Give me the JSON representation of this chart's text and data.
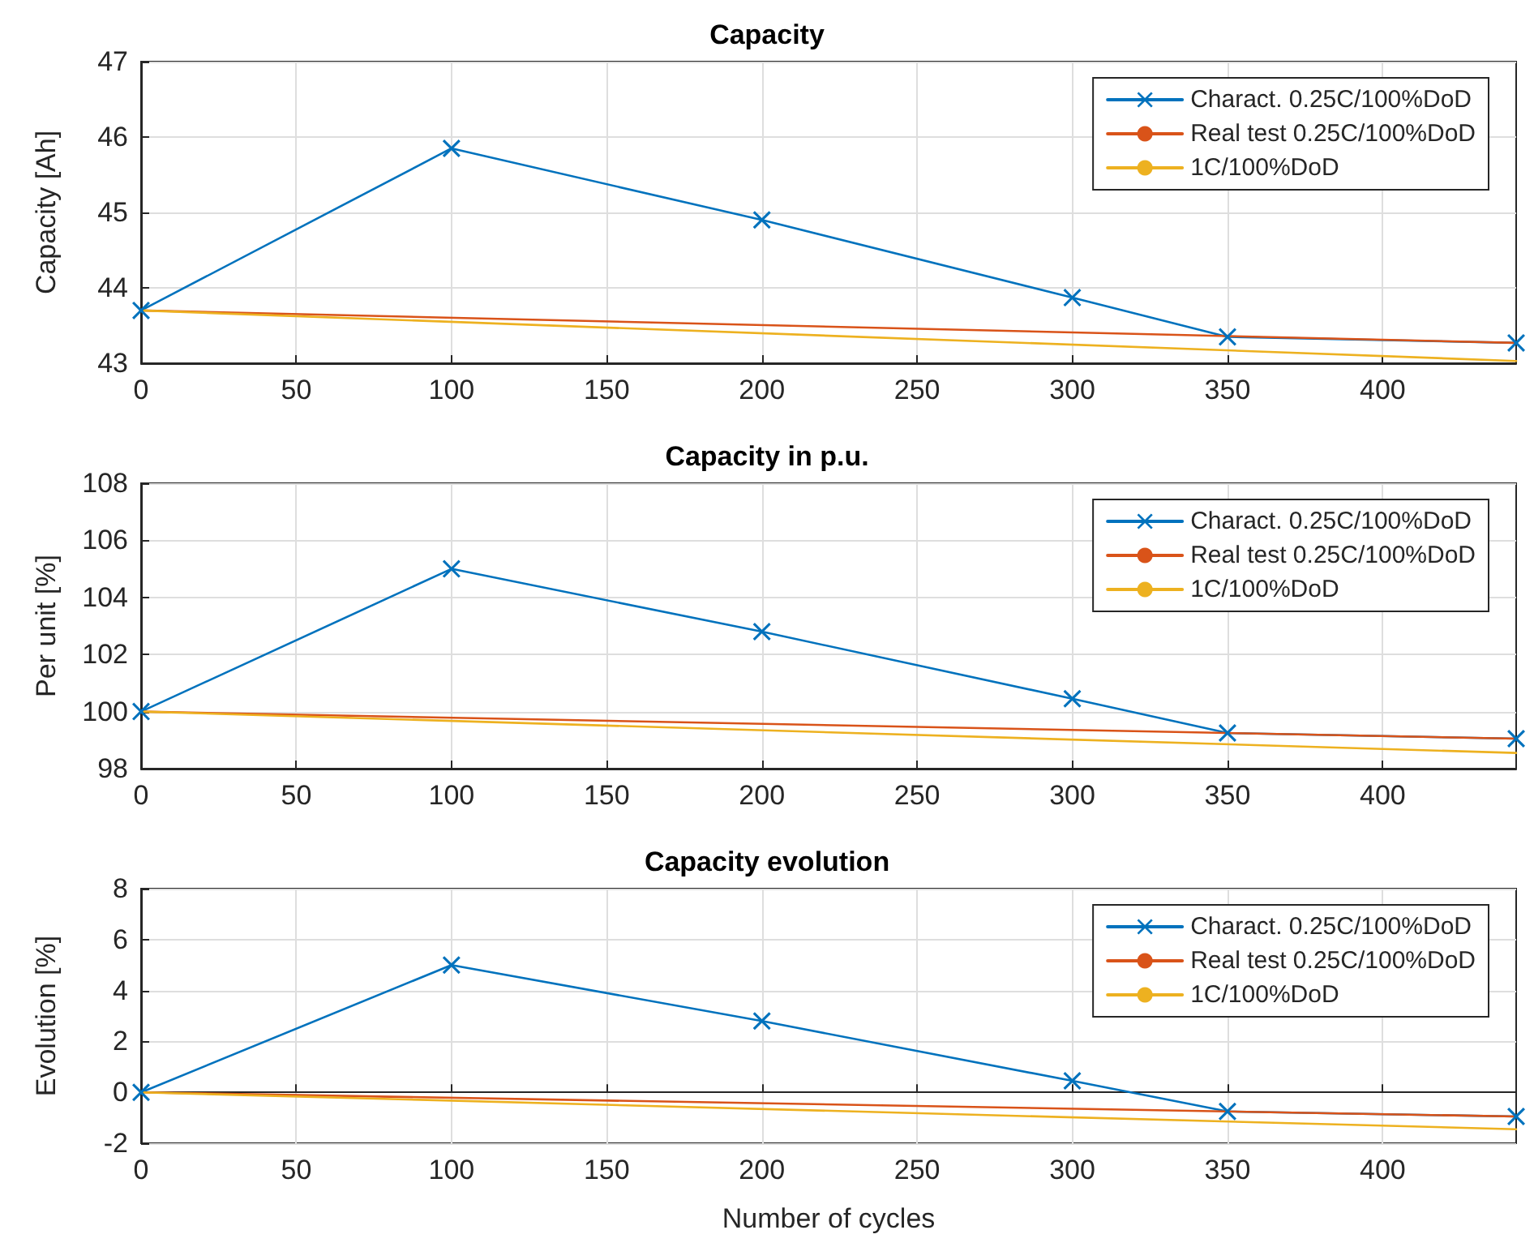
{
  "chart_data": [
    {
      "type": "line",
      "title": "Capacity",
      "ylabel": "Capacity [Ah]",
      "xlim": [
        0,
        443
      ],
      "xticks": [
        0,
        50,
        100,
        150,
        200,
        250,
        300,
        350,
        400
      ],
      "ylim": [
        43,
        47
      ],
      "yticks": [
        43,
        44,
        45,
        46,
        47
      ],
      "grid": true,
      "legend": "top right",
      "line_style": "solid",
      "series": [
        {
          "name": "Charact. 0.25C/100%DoD",
          "color": "#0072bd",
          "marker": "cross",
          "x": [
            0,
            100,
            200,
            300,
            350,
            443
          ],
          "values": [
            43.7,
            45.85,
            44.9,
            43.87,
            43.35,
            43.27
          ]
        },
        {
          "name": "Real test 0.25C/100%DoD",
          "color": "#d95319",
          "marker": "none",
          "x": [
            0,
            443
          ],
          "values": [
            43.7,
            43.27
          ]
        },
        {
          "name": "1C/100%DoD",
          "color": "#edb120",
          "marker": "none",
          "x": [
            0,
            443
          ],
          "values": [
            43.7,
            43.03
          ]
        }
      ]
    },
    {
      "type": "line",
      "title": "Capacity in p.u.",
      "ylabel": "Per unit [%]",
      "xlim": [
        0,
        443
      ],
      "xticks": [
        0,
        50,
        100,
        150,
        200,
        250,
        300,
        350,
        400
      ],
      "ylim": [
        98,
        108
      ],
      "yticks": [
        98,
        100,
        102,
        104,
        106,
        108
      ],
      "grid": true,
      "legend": "top right",
      "line_style": "solid",
      "series": [
        {
          "name": "Charact. 0.25C/100%DoD",
          "color": "#0072bd",
          "marker": "cross",
          "x": [
            0,
            100,
            200,
            300,
            350,
            443
          ],
          "values": [
            100,
            105,
            102.8,
            100.45,
            99.25,
            99.05
          ]
        },
        {
          "name": "Real test 0.25C/100%DoD",
          "color": "#d95319",
          "marker": "none",
          "x": [
            0,
            443
          ],
          "values": [
            100,
            99.05
          ]
        },
        {
          "name": "1C/100%DoD",
          "color": "#edb120",
          "marker": "none",
          "x": [
            0,
            443
          ],
          "values": [
            100,
            98.55
          ]
        }
      ]
    },
    {
      "type": "line",
      "title": "Capacity evolution",
      "xlabel": "Number of cycles",
      "ylabel": "Evolution [%]",
      "xlim": [
        0,
        443
      ],
      "xticks": [
        0,
        50,
        100,
        150,
        200,
        250,
        300,
        350,
        400
      ],
      "ylim": [
        -2,
        8
      ],
      "yticks": [
        -2,
        0,
        2,
        4,
        6,
        8
      ],
      "grid": true,
      "legend": "top right",
      "line_style": "solid",
      "series": [
        {
          "name": "Charact. 0.25C/100%DoD",
          "color": "#0072bd",
          "marker": "cross",
          "x": [
            0,
            100,
            200,
            300,
            350,
            443
          ],
          "values": [
            0,
            5,
            2.8,
            0.45,
            -0.75,
            -0.95
          ]
        },
        {
          "name": "Real test 0.25C/100%DoD",
          "color": "#d95319",
          "marker": "none",
          "x": [
            0,
            443
          ],
          "values": [
            0,
            -0.95
          ]
        },
        {
          "name": "1C/100%DoD",
          "color": "#edb120",
          "marker": "none",
          "x": [
            0,
            443
          ],
          "values": [
            0,
            -1.45
          ]
        }
      ]
    }
  ]
}
